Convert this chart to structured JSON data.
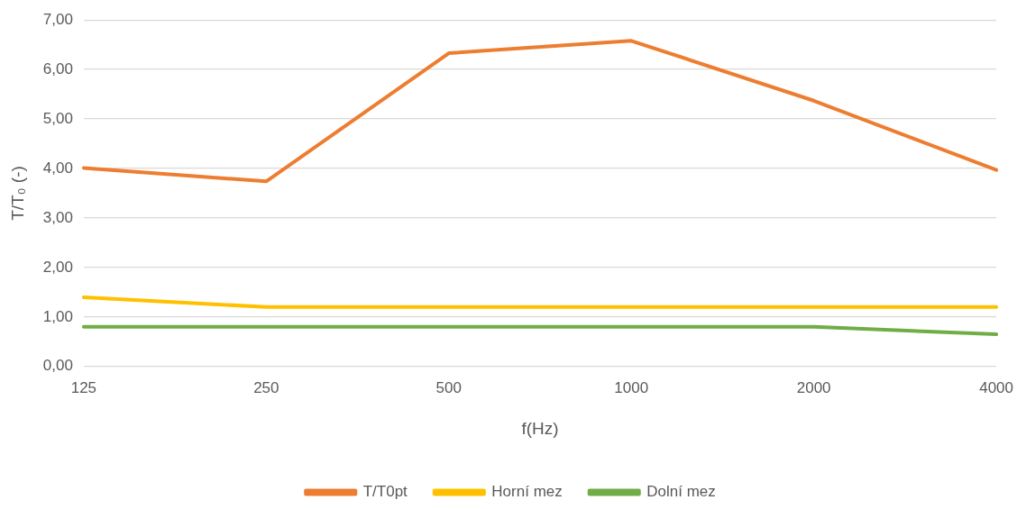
{
  "chart_data": {
    "type": "line",
    "xlabel": "f(Hz)",
    "ylabel": "T/T₀ (-)",
    "categories": [
      "125",
      "250",
      "500",
      "1000",
      "2000",
      "4000"
    ],
    "series": [
      {
        "name": "T/T0pt",
        "color": "#ed7d31",
        "values": [
          4.01,
          3.74,
          6.33,
          6.58,
          5.37,
          3.97
        ]
      },
      {
        "name": "Horní mez",
        "color": "#ffc000",
        "values": [
          1.4,
          1.2,
          1.2,
          1.2,
          1.2,
          1.2
        ]
      },
      {
        "name": "Dolní mez",
        "color": "#70ad47",
        "values": [
          0.8,
          0.8,
          0.8,
          0.8,
          0.8,
          0.65
        ]
      }
    ],
    "ylim": [
      0,
      7
    ],
    "yticks": [
      {
        "value": 0,
        "label": "0,00"
      },
      {
        "value": 1,
        "label": "1,00"
      },
      {
        "value": 2,
        "label": "2,00"
      },
      {
        "value": 3,
        "label": "3,00"
      },
      {
        "value": 4,
        "label": "4,00"
      },
      {
        "value": 5,
        "label": "5,00"
      },
      {
        "value": 6,
        "label": "6,00"
      },
      {
        "value": 7,
        "label": "7,00"
      }
    ],
    "grid": "y",
    "legend": "bottom",
    "marker": "none",
    "line_style": "solid"
  }
}
